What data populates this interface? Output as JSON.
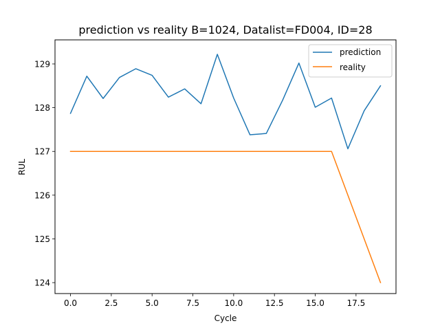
{
  "chart_data": {
    "type": "line",
    "title": "prediction vs reality B=1024, Datalist=FD004, ID=28",
    "xlabel": "Cycle",
    "ylabel": "RUL",
    "xlim": [
      -0.95,
      19.95
    ],
    "ylim": [
      123.75,
      129.55
    ],
    "xticks": [
      0.0,
      2.5,
      5.0,
      7.5,
      10.0,
      12.5,
      15.0,
      17.5
    ],
    "xtick_labels": [
      "0.0",
      "2.5",
      "5.0",
      "7.5",
      "10.0",
      "12.5",
      "15.0",
      "17.5"
    ],
    "yticks": [
      124,
      125,
      126,
      127,
      128,
      129
    ],
    "ytick_labels": [
      "124",
      "125",
      "126",
      "127",
      "128",
      "129"
    ],
    "grid": false,
    "legend_position": "top-right",
    "x": [
      0,
      1,
      2,
      3,
      4,
      5,
      6,
      7,
      8,
      9,
      10,
      11,
      12,
      13,
      14,
      15,
      16,
      17,
      18,
      19
    ],
    "series": [
      {
        "name": "prediction",
        "color": "#1f77b4",
        "values": [
          127.87,
          128.72,
          128.21,
          128.69,
          128.89,
          128.74,
          128.24,
          128.43,
          128.09,
          129.22,
          128.22,
          127.38,
          127.41,
          128.17,
          129.02,
          128.01,
          128.22,
          127.06,
          127.93,
          128.5
        ]
      },
      {
        "name": "reality",
        "color": "#ff7f0e",
        "values": [
          127,
          127,
          127,
          127,
          127,
          127,
          127,
          127,
          127,
          127,
          127,
          127,
          127,
          127,
          127,
          127,
          127,
          126,
          125,
          124
        ]
      }
    ]
  }
}
